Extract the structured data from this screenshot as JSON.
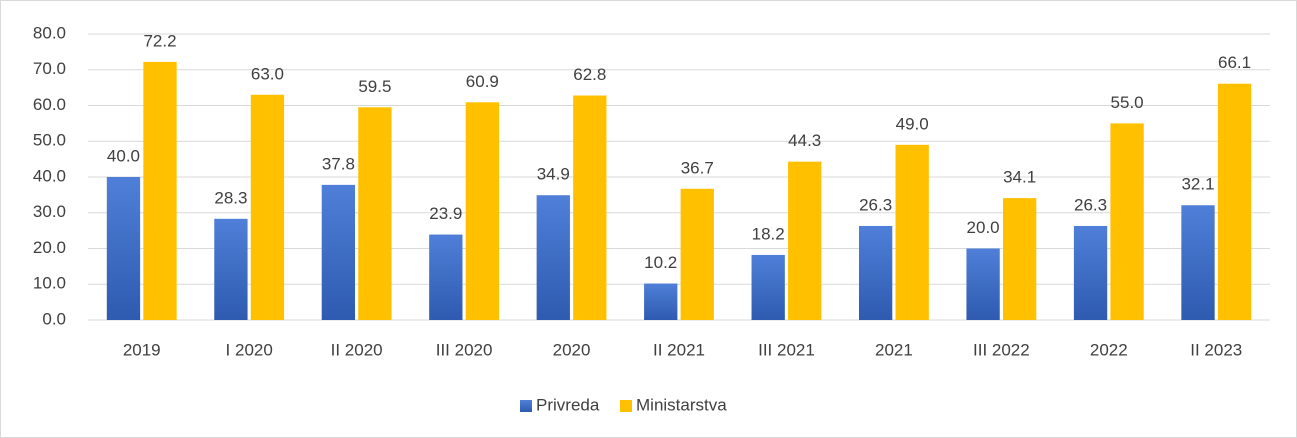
{
  "chart_data": {
    "type": "bar",
    "categories": [
      "2019",
      "I 2020",
      "II 2020",
      "III 2020",
      "2020",
      "II 2021",
      "III 2021",
      "2021",
      "III 2022",
      "2022",
      "II 2023"
    ],
    "series": [
      {
        "name": "Privreda",
        "color": "#4472c4",
        "values": [
          40.0,
          28.3,
          37.8,
          23.9,
          34.9,
          10.2,
          18.2,
          26.3,
          20.0,
          26.3,
          32.1
        ],
        "value_labels": [
          "40.0",
          "28.3",
          "37.8",
          "23.9",
          "34.9",
          "10.2",
          "18.2",
          "26.3",
          "20.0",
          "26.3",
          "32.1"
        ]
      },
      {
        "name": "Ministarstva",
        "color": "#ffc000",
        "values": [
          72.2,
          63.0,
          59.5,
          60.9,
          62.8,
          36.7,
          44.3,
          49.0,
          34.1,
          55.0,
          66.1
        ],
        "value_labels": [
          "72.2",
          "63.0",
          "59.5",
          "60.9",
          "62.8",
          "36.7",
          "44.3",
          "49.0",
          "34.1",
          "55.0",
          "66.1"
        ]
      }
    ],
    "ylim": [
      0,
      80
    ],
    "yticks": [
      {
        "value": 0,
        "label": "0.0"
      },
      {
        "value": 10,
        "label": "10.0"
      },
      {
        "value": 20,
        "label": "20.0"
      },
      {
        "value": 30,
        "label": "30.0"
      },
      {
        "value": 40,
        "label": "40.0"
      },
      {
        "value": 50,
        "label": "50.0"
      },
      {
        "value": 60,
        "label": "60.0"
      },
      {
        "value": 70,
        "label": "70.0"
      },
      {
        "value": 80,
        "label": "80.0"
      }
    ],
    "grid": true,
    "legend": "bottom"
  }
}
